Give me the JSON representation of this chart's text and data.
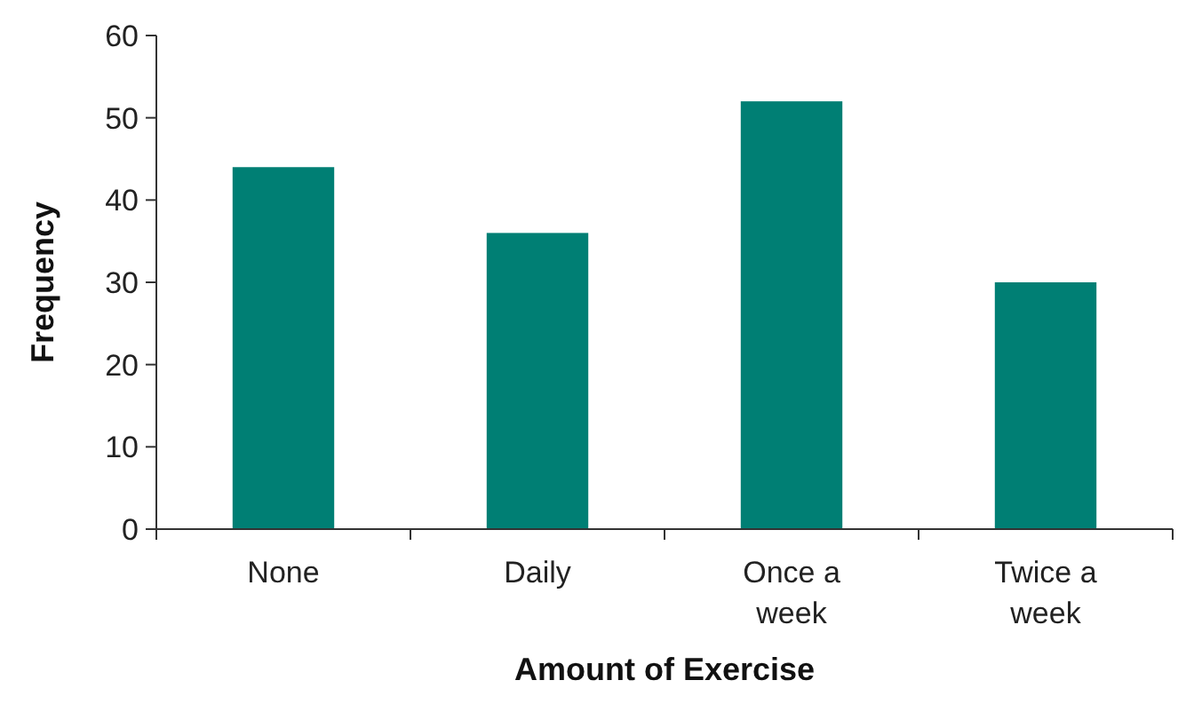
{
  "chart_data": {
    "type": "bar",
    "xlabel": "Amount of Exercise",
    "ylabel": "Frequency",
    "categories": [
      "None",
      "Daily",
      "Once a week",
      "Twice a week"
    ],
    "values": [
      44,
      36,
      52,
      30
    ],
    "color": "#007f74",
    "ylim": [
      0,
      60
    ],
    "yticks": [
      0,
      10,
      20,
      30,
      40,
      50,
      60
    ]
  }
}
